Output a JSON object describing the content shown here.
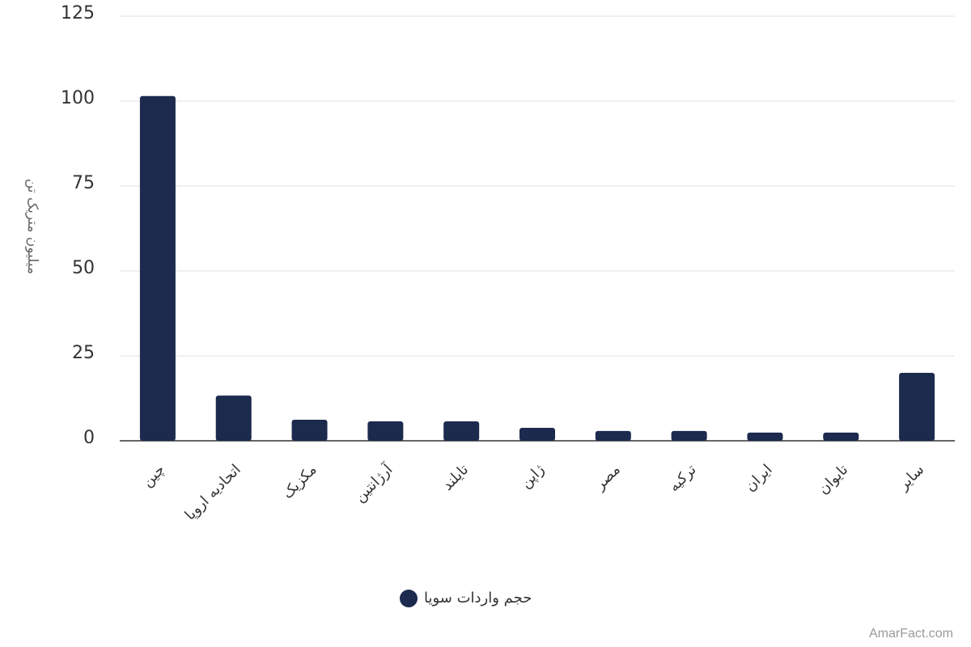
{
  "chart_data": {
    "type": "bar",
    "y_label": "میلیون متریک تن",
    "categories": [
      "چین",
      "اتحادیه اروپا",
      "مکزیک",
      "آرژانتین",
      "تایلند",
      "ژاپن",
      "مصر",
      "ترکیه",
      "ایران",
      "تایوان",
      "سایر"
    ],
    "series": [
      {
        "name": "حجم واردات سویا",
        "color": "#1c2a4e",
        "values": [
          101.5,
          13.3,
          6.2,
          5.7,
          5.7,
          3.8,
          2.9,
          2.9,
          2.4,
          2.4,
          20
        ]
      }
    ],
    "ylim": [
      0,
      125
    ],
    "yticks": [
      0,
      25,
      50,
      75,
      100,
      125
    ],
    "grid": true,
    "legend": "bottom"
  },
  "watermark": "AmarFact.com"
}
